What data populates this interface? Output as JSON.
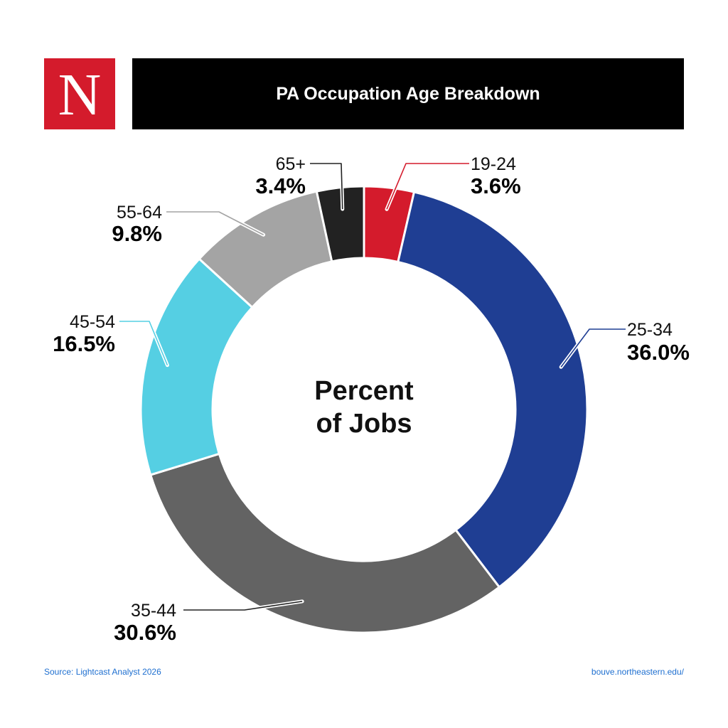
{
  "logo": {
    "letter": "N"
  },
  "header": {
    "title": "PA Occupation Age Breakdown"
  },
  "chart_data": {
    "type": "pie",
    "style": "donut",
    "center_label": [
      "Percent",
      "of Jobs"
    ],
    "slices": [
      {
        "label": "19-24",
        "value": 3.6,
        "value_label": "3.6%",
        "color": "#D41B2C"
      },
      {
        "label": "25-34",
        "value": 36.0,
        "value_label": "36.0%",
        "color": "#1F3E93"
      },
      {
        "label": "35-44",
        "value": 30.6,
        "value_label": "30.6%",
        "color": "#636363"
      },
      {
        "label": "45-54",
        "value": 16.5,
        "value_label": "16.5%",
        "color": "#55CFE3"
      },
      {
        "label": "55-64",
        "value": 9.8,
        "value_label": "9.8%",
        "color": "#A4A4A4"
      },
      {
        "label": "65+",
        "value": 3.4,
        "value_label": "3.4%",
        "color": "#222222"
      }
    ]
  },
  "footer": {
    "source": "Source: Lightcast Analyst 2026",
    "url": "bouve.northeastern.edu/"
  }
}
